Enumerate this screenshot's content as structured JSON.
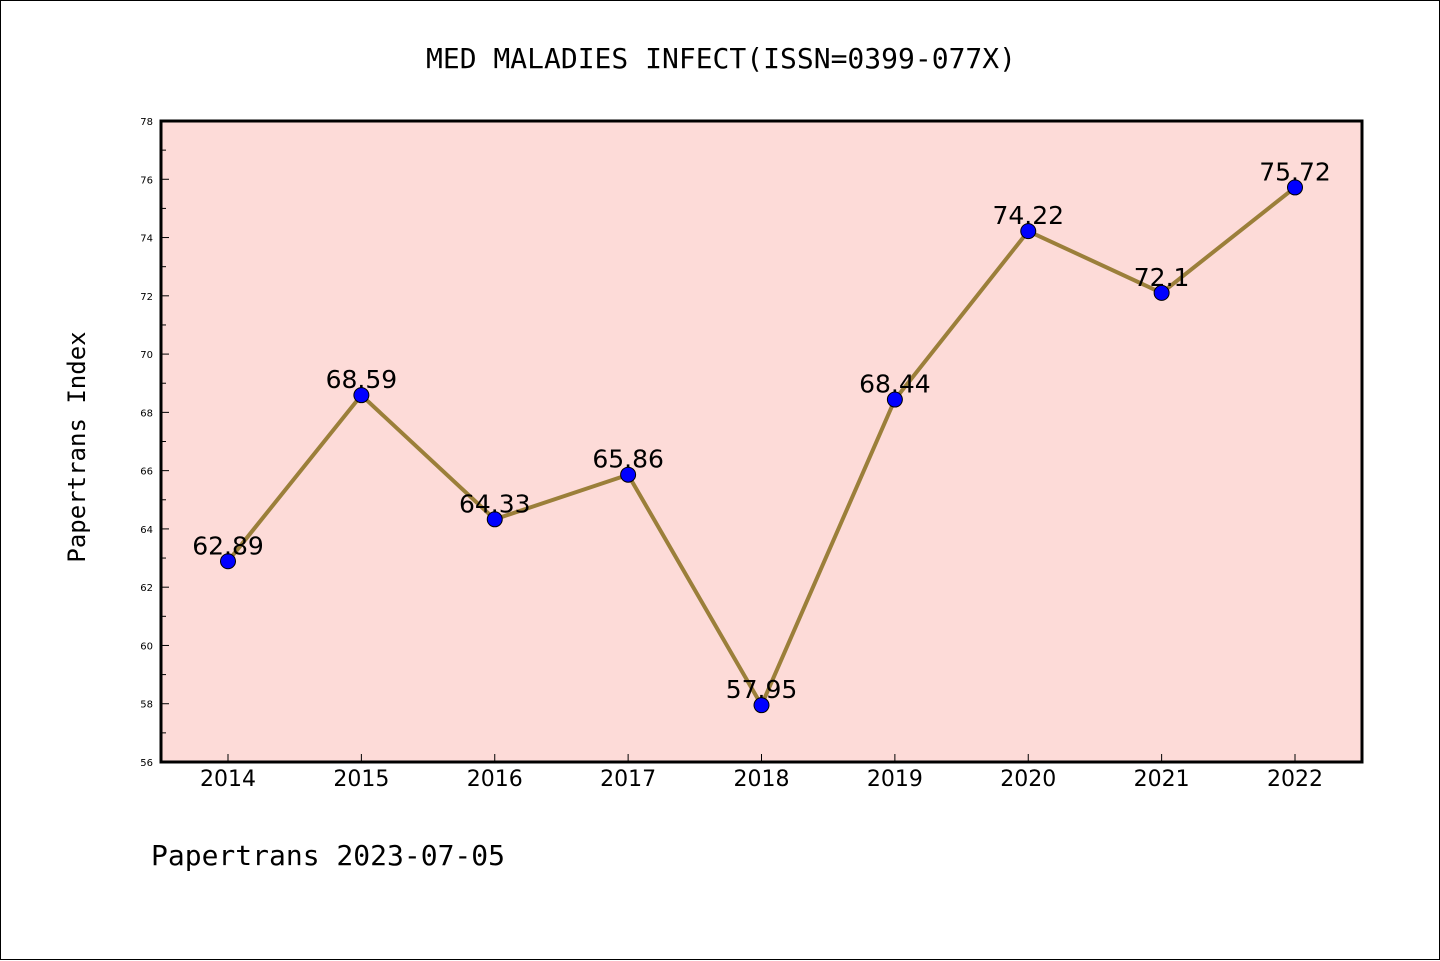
{
  "chart_data": {
    "type": "line",
    "title": "MED MALADIES INFECT(ISSN=0399-077X)",
    "xlabel": "",
    "ylabel": "Papertrans Index",
    "categories": [
      "2014",
      "2015",
      "2016",
      "2017",
      "2018",
      "2019",
      "2020",
      "2021",
      "2022"
    ],
    "values": [
      62.89,
      68.59,
      64.33,
      65.86,
      57.95,
      68.44,
      74.22,
      72.1,
      75.72
    ],
    "data_labels": [
      "62.89",
      "68.59",
      "64.33",
      "65.86",
      "57.95",
      "68.44",
      "74.22",
      "72.1",
      "75.72"
    ],
    "ylim": [
      56,
      78
    ],
    "yticks": [
      56,
      58,
      60,
      62,
      64,
      66,
      68,
      70,
      72,
      74,
      76,
      78
    ],
    "grid": false,
    "legend": "none"
  },
  "footer": "Papertrans 2023-07-05",
  "colors": {
    "plot_background": "#fddbd8",
    "line": "#9b7f3a",
    "marker": "#0000ff",
    "axes": "#000000"
  }
}
